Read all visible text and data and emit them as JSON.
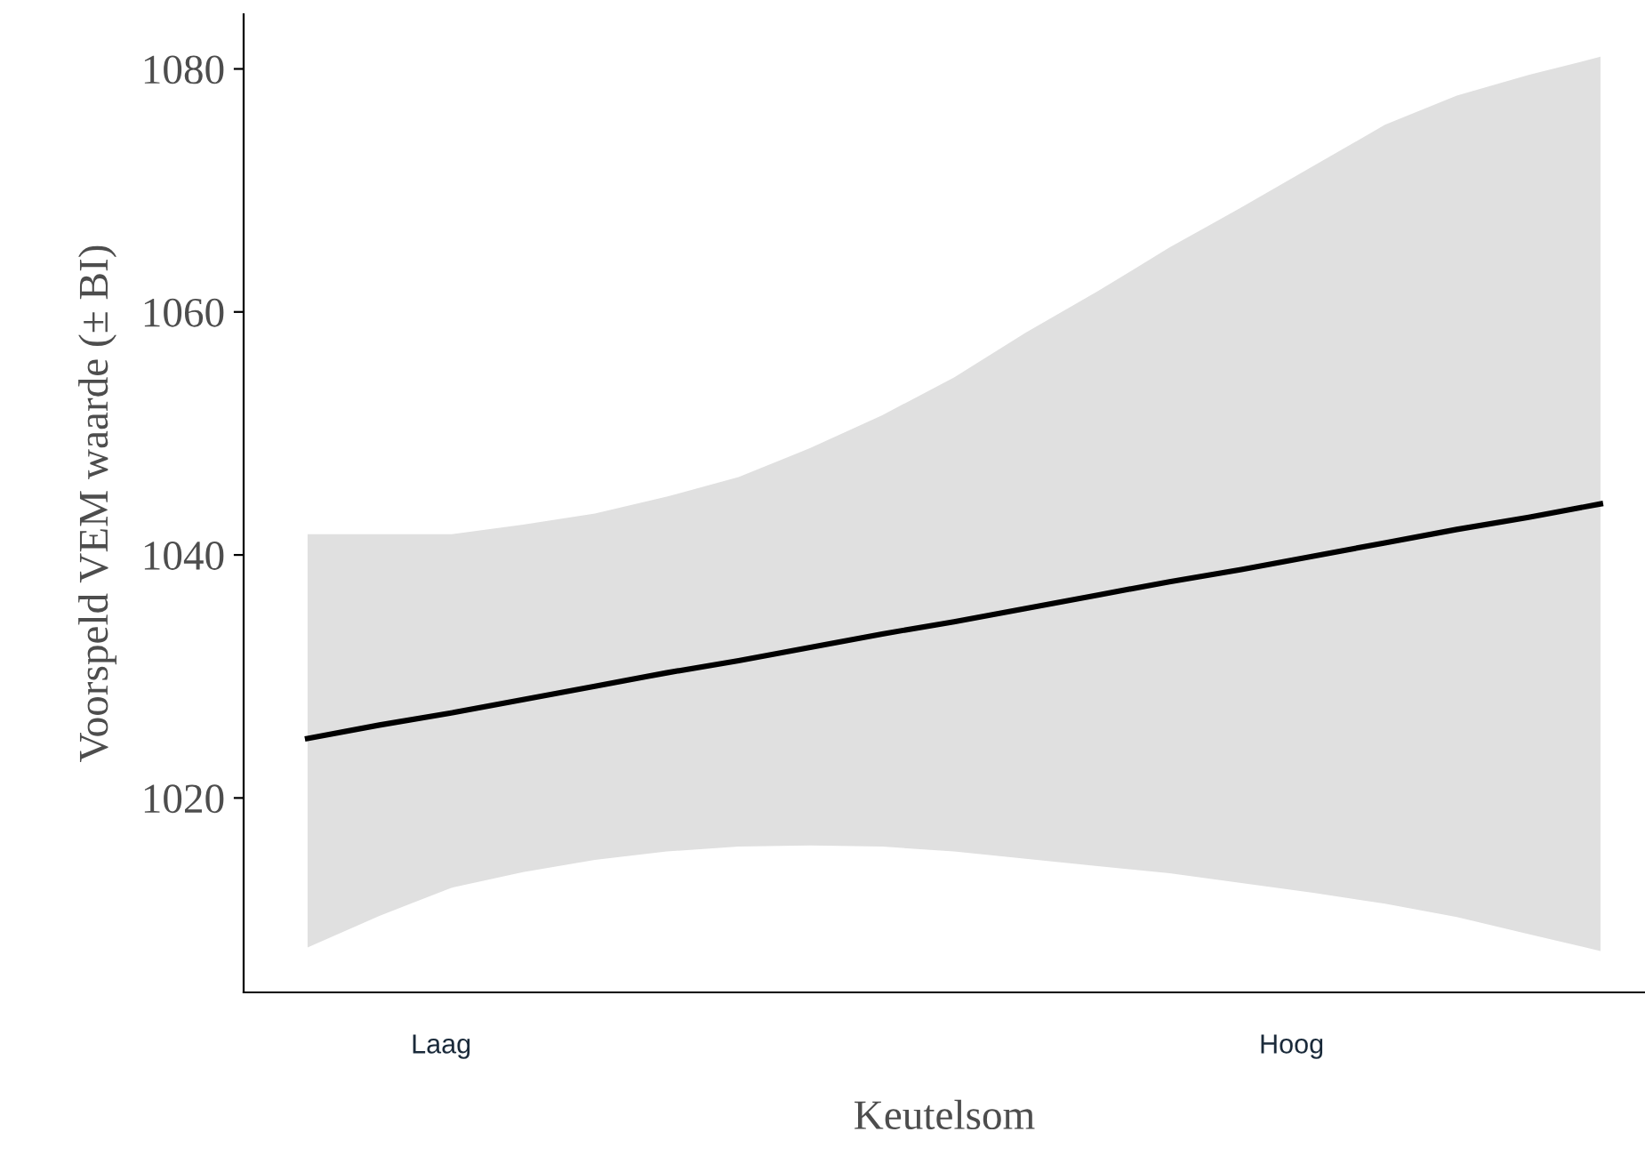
{
  "chart_data": {
    "type": "line",
    "xlabel": "Keutelsom",
    "ylabel": "Voorspeld VEM waarde (± BI)",
    "categories": [
      null,
      null,
      null,
      null,
      null,
      null,
      null,
      null,
      null,
      null,
      null,
      null,
      null,
      null,
      null,
      null,
      null,
      null,
      null
    ],
    "series": [
      {
        "color": "#000000",
        "values": [
          1024.9,
          1026.0,
          1027.0,
          1028.1,
          1029.2,
          1030.3,
          1031.3,
          1032.4,
          1033.5,
          1034.5,
          1035.6,
          1036.7,
          1037.8,
          1038.8,
          1039.9,
          1041.0,
          1042.1,
          1043.1,
          1044.2
        ],
        "lower": [
          1007.7,
          1010.3,
          1012.6,
          1013.9,
          1014.9,
          1015.6,
          1016.0,
          1016.1,
          1016.0,
          1015.6,
          1015.0,
          1014.4,
          1013.8,
          1013.0,
          1012.2,
          1011.3,
          1010.2,
          1008.8,
          1007.4
        ],
        "upper": [
          1041.7,
          1041.7,
          1041.7,
          1042.5,
          1043.4,
          1044.8,
          1046.4,
          1048.8,
          1051.5,
          1054.6,
          1058.3,
          1061.7,
          1065.3,
          1068.6,
          1072.0,
          1075.4,
          1077.8,
          1079.5,
          1081.0
        ]
      }
    ],
    "annotations": [
      "Laag",
      "Hoog"
    ],
    "ylim": [
      1004,
      1084.5
    ],
    "yticks": [
      1020,
      1040,
      1060,
      1080
    ],
    "grid": false,
    "legend": false,
    "marker": "none",
    "line_style": "solid"
  }
}
